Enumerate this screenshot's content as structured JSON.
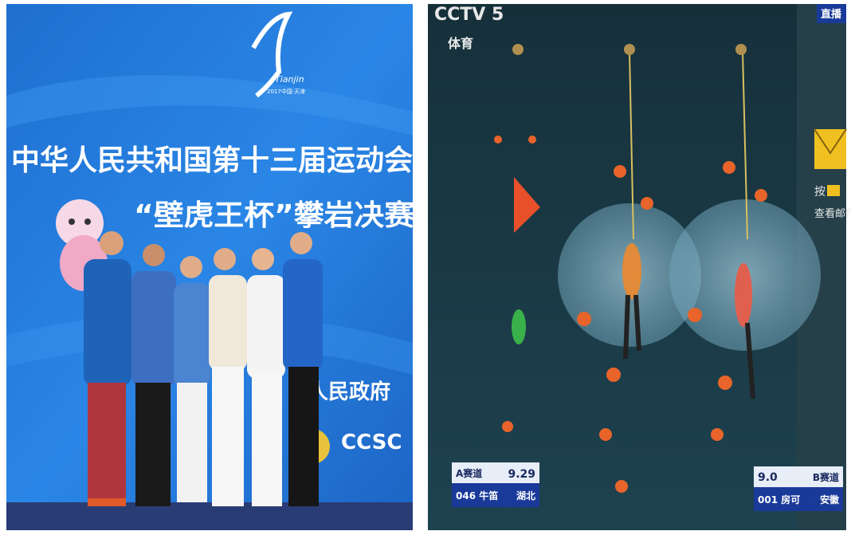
{
  "left_photo": {
    "logo_text": "Tianjin",
    "logo_year": "2017中国·天津",
    "banner_title": "中华人民共和国第十三届运动会",
    "banner_subtitle": "“壁虎王杯”攀岩决赛",
    "sponsor_text": "区人民政府",
    "brand": "CCSC"
  },
  "right_photo": {
    "channel": "CCTV 5",
    "channel_sub": "体育",
    "live": "直播",
    "mail_hint": "查看邮件",
    "mail_key": "按",
    "score_a": {
      "lane": "A赛道",
      "time": "9.29",
      "athlete": "046 牛笛",
      "province": "湖北"
    },
    "score_b": {
      "lane": "B赛道",
      "time": "9.0",
      "athlete": "001 房可",
      "province": "安徽"
    }
  }
}
